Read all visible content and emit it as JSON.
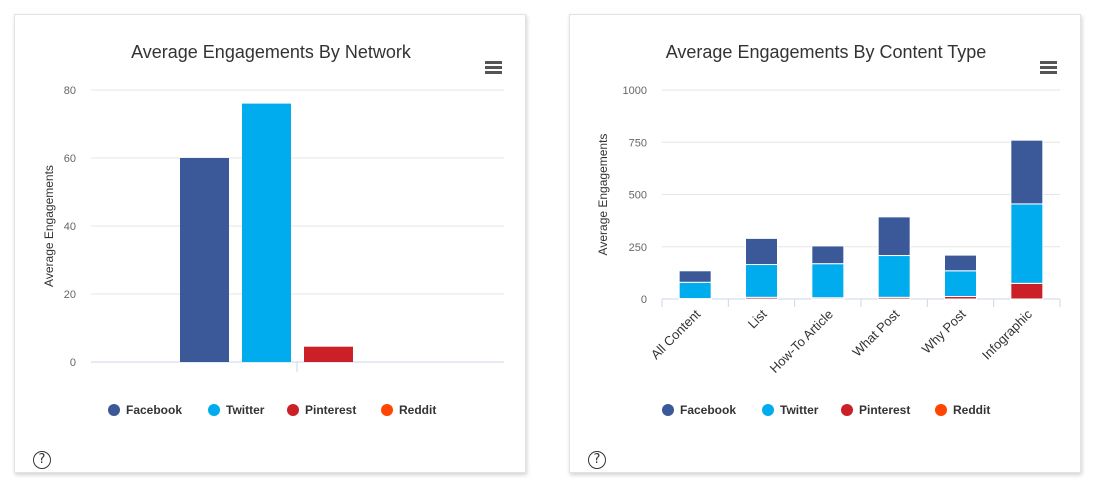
{
  "help_icon": "?",
  "menu_icon": "hamburger-menu-icon",
  "legend": [
    {
      "name": "Facebook",
      "color": "#3b5998"
    },
    {
      "name": "Twitter",
      "color": "#00aced"
    },
    {
      "name": "Pinterest",
      "color": "#cb2027"
    },
    {
      "name": "Reddit",
      "color": "#ff4500"
    }
  ],
  "chart_data": [
    {
      "type": "bar",
      "title": "Average Engagements By Network",
      "ylabel": "Average Engagements",
      "xlabel": "",
      "ylim": [
        0,
        80
      ],
      "yticks": [
        0,
        20,
        40,
        60,
        80
      ],
      "categories": [
        ""
      ],
      "series": [
        {
          "name": "Facebook",
          "color": "#3b5998",
          "values": [
            60
          ]
        },
        {
          "name": "Twitter",
          "color": "#00aced",
          "values": [
            76
          ]
        },
        {
          "name": "Pinterest",
          "color": "#cb2027",
          "values": [
            4.5
          ]
        },
        {
          "name": "Reddit",
          "color": "#ff4500",
          "values": [
            0
          ]
        }
      ],
      "legend_position": "bottom",
      "grid": true
    },
    {
      "type": "bar",
      "stacked": true,
      "title": "Average Engagements By Content Type",
      "ylabel": "Average Engagements",
      "xlabel": "",
      "ylim": [
        0,
        1000
      ],
      "yticks": [
        0,
        250,
        500,
        750,
        1000
      ],
      "categories": [
        "All Content",
        "List",
        "How-To Article",
        "What Post",
        "Why Post",
        "Infographic"
      ],
      "series": [
        {
          "name": "Reddit",
          "color": "#ff4500",
          "values": [
            0,
            0,
            0,
            0,
            0,
            0
          ]
        },
        {
          "name": "Pinterest",
          "color": "#cb2027",
          "values": [
            2,
            8,
            6,
            8,
            12,
            75
          ]
        },
        {
          "name": "Twitter",
          "color": "#00aced",
          "values": [
            78,
            157,
            163,
            200,
            123,
            380
          ]
        },
        {
          "name": "Facebook",
          "color": "#3b5998",
          "values": [
            55,
            125,
            85,
            185,
            75,
            305
          ]
        }
      ],
      "legend_position": "bottom",
      "grid": true
    }
  ]
}
